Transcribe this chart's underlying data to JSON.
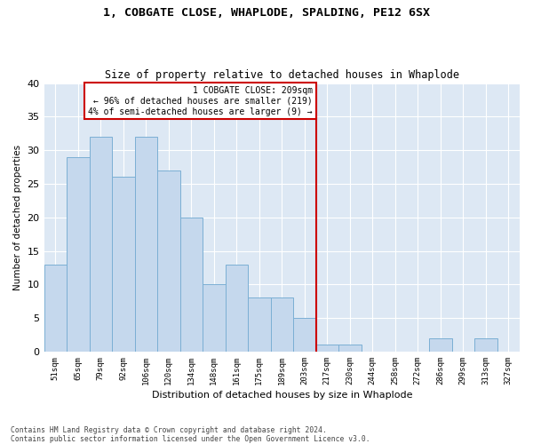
{
  "title": "1, COBGATE CLOSE, WHAPLODE, SPALDING, PE12 6SX",
  "subtitle": "Size of property relative to detached houses in Whaplode",
  "xlabel": "Distribution of detached houses by size in Whaplode",
  "ylabel": "Number of detached properties",
  "bin_labels": [
    "51sqm",
    "65sqm",
    "79sqm",
    "92sqm",
    "106sqm",
    "120sqm",
    "134sqm",
    "148sqm",
    "161sqm",
    "175sqm",
    "189sqm",
    "203sqm",
    "217sqm",
    "230sqm",
    "244sqm",
    "258sqm",
    "272sqm",
    "286sqm",
    "299sqm",
    "313sqm",
    "327sqm"
  ],
  "bar_values": [
    13,
    29,
    32,
    26,
    32,
    27,
    20,
    10,
    13,
    8,
    8,
    5,
    1,
    1,
    0,
    0,
    0,
    2,
    0,
    2,
    0
  ],
  "bar_color": "#c5d8ed",
  "bar_edge_color": "#7bafd4",
  "background_color": "#dde8f4",
  "grid_color": "#ffffff",
  "ylim": [
    0,
    40
  ],
  "yticks": [
    0,
    5,
    10,
    15,
    20,
    25,
    30,
    35,
    40
  ],
  "marker_bin_index": 11,
  "marker_label": "1 COBGATE CLOSE: 209sqm",
  "marker_line1": "← 96% of detached houses are smaller (219)",
  "marker_line2": "4% of semi-detached houses are larger (9) →",
  "marker_color": "#cc0000",
  "footnote1": "Contains HM Land Registry data © Crown copyright and database right 2024.",
  "footnote2": "Contains public sector information licensed under the Open Government Licence v3.0."
}
